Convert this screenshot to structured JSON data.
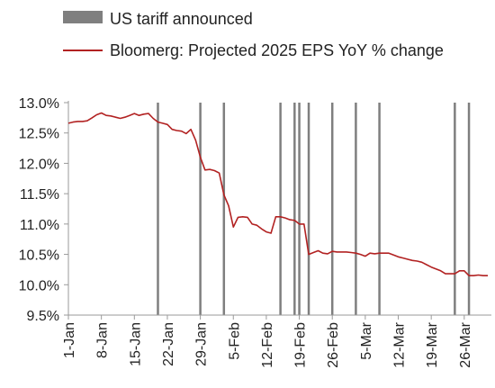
{
  "chart_data": {
    "type": "line",
    "series": [
      {
        "name": "Bloomerg: Projected 2025 EPS YoY % change",
        "color": "#b22222",
        "points": [
          [
            0,
            12.66
          ],
          [
            1,
            12.68
          ],
          [
            2,
            12.69
          ],
          [
            3,
            12.69
          ],
          [
            4,
            12.7
          ],
          [
            5,
            12.75
          ],
          [
            6,
            12.8
          ],
          [
            7,
            12.83
          ],
          [
            8,
            12.79
          ],
          [
            9,
            12.78
          ],
          [
            10,
            12.76
          ],
          [
            11,
            12.74
          ],
          [
            12,
            12.76
          ],
          [
            13,
            12.79
          ],
          [
            14,
            12.82
          ],
          [
            15,
            12.79
          ],
          [
            16,
            12.81
          ],
          [
            17,
            12.82
          ],
          [
            18,
            12.74
          ],
          [
            19,
            12.68
          ],
          [
            20,
            12.66
          ],
          [
            21,
            12.64
          ],
          [
            22,
            12.56
          ],
          [
            23,
            12.54
          ],
          [
            24,
            12.53
          ],
          [
            25,
            12.49
          ],
          [
            26,
            12.56
          ],
          [
            27,
            12.38
          ],
          [
            28,
            12.1
          ],
          [
            29,
            11.89
          ],
          [
            30,
            11.9
          ],
          [
            31,
            11.88
          ],
          [
            32,
            11.84
          ],
          [
            33,
            11.48
          ],
          [
            34,
            11.3
          ],
          [
            35,
            10.95
          ],
          [
            36,
            11.11
          ],
          [
            37,
            11.12
          ],
          [
            38,
            11.11
          ],
          [
            39,
            11.0
          ],
          [
            40,
            10.98
          ],
          [
            41,
            10.92
          ],
          [
            42,
            10.87
          ],
          [
            43,
            10.85
          ],
          [
            44,
            11.12
          ],
          [
            45,
            11.12
          ],
          [
            46,
            11.1
          ],
          [
            47,
            11.07
          ],
          [
            48,
            11.06
          ],
          [
            49,
            11.0
          ],
          [
            50,
            11.0
          ],
          [
            51,
            10.5
          ],
          [
            52,
            10.53
          ],
          [
            53,
            10.56
          ],
          [
            54,
            10.52
          ],
          [
            55,
            10.51
          ],
          [
            56,
            10.55
          ],
          [
            57,
            10.54
          ],
          [
            58,
            10.54
          ],
          [
            59,
            10.54
          ],
          [
            60,
            10.53
          ],
          [
            61,
            10.52
          ],
          [
            62,
            10.5
          ],
          [
            63,
            10.47
          ],
          [
            64,
            10.52
          ],
          [
            65,
            10.51
          ],
          [
            66,
            10.52
          ],
          [
            67,
            10.52
          ],
          [
            68,
            10.52
          ],
          [
            69,
            10.49
          ],
          [
            70,
            10.46
          ],
          [
            71,
            10.44
          ],
          [
            72,
            10.42
          ],
          [
            73,
            10.4
          ],
          [
            74,
            10.39
          ],
          [
            75,
            10.37
          ],
          [
            76,
            10.33
          ],
          [
            77,
            10.29
          ],
          [
            78,
            10.26
          ],
          [
            79,
            10.23
          ],
          [
            80,
            10.18
          ],
          [
            81,
            10.18
          ],
          [
            82,
            10.18
          ],
          [
            83,
            10.23
          ],
          [
            84,
            10.23
          ],
          [
            85,
            10.15
          ],
          [
            86,
            10.15
          ],
          [
            87,
            10.16
          ],
          [
            88,
            10.15
          ],
          [
            89,
            10.15
          ]
        ]
      }
    ],
    "event_series": {
      "name": "US tariff announced",
      "color": "#7f7f7f",
      "x": [
        19,
        28,
        33,
        45,
        48,
        49,
        51,
        56,
        61,
        66,
        82,
        85
      ]
    },
    "x_ticks": [
      {
        "x": 0,
        "label": "1-Jan"
      },
      {
        "x": 7,
        "label": "8-Jan"
      },
      {
        "x": 14,
        "label": "15-Jan"
      },
      {
        "x": 21,
        "label": "22-Jan"
      },
      {
        "x": 28,
        "label": "29-Jan"
      },
      {
        "x": 35,
        "label": "5-Feb"
      },
      {
        "x": 42,
        "label": "12-Feb"
      },
      {
        "x": 49,
        "label": "19-Feb"
      },
      {
        "x": 56,
        "label": "26-Feb"
      },
      {
        "x": 63,
        "label": "5-Mar"
      },
      {
        "x": 70,
        "label": "12-Mar"
      },
      {
        "x": 77,
        "label": "19-Mar"
      },
      {
        "x": 84,
        "label": "26-Mar"
      }
    ],
    "y_ticks": [
      {
        "v": 9.5,
        "label": "9.5%"
      },
      {
        "v": 10.0,
        "label": "10.0%"
      },
      {
        "v": 10.5,
        "label": "10.5%"
      },
      {
        "v": 11.0,
        "label": "11.0%"
      },
      {
        "v": 11.5,
        "label": "11.5%"
      },
      {
        "v": 12.0,
        "label": "12.0%"
      },
      {
        "v": 12.5,
        "label": "12.5%"
      },
      {
        "v": 13.0,
        "label": "13.0%"
      }
    ],
    "ylim": [
      9.5,
      13.0
    ],
    "xlim": [
      0,
      89
    ],
    "grid": false,
    "legend_position": "top-left"
  }
}
